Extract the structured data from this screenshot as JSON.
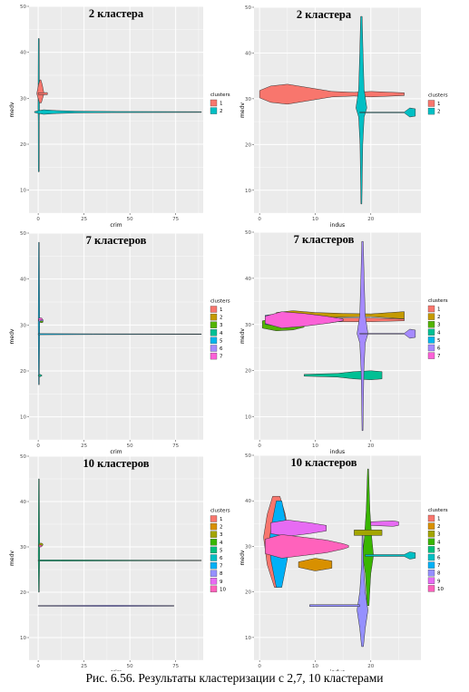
{
  "caption": "Рис. 6.56. Результаты  кластеризации с 2,7, 10 кластерами",
  "chart_data": [
    {
      "type": "violin",
      "title": "2 кластера",
      "xlabel": "crim",
      "ylabel": "medv",
      "xlim": [
        -5,
        90
      ],
      "ylim": [
        5,
        50
      ],
      "xticks": [
        0,
        25,
        50,
        75
      ],
      "yticks": [
        10,
        20,
        30,
        40,
        50
      ],
      "legend_title": "clusters",
      "legend_position": "right",
      "series": [
        {
          "name": "1",
          "color": "#F8766D",
          "x": [
            0,
            5
          ],
          "y": [
            29,
            34
          ],
          "median_y": 31
        },
        {
          "name": "2",
          "color": "#00BFC4",
          "x": [
            0,
            89
          ],
          "y": [
            14,
            43
          ],
          "median_y": 27
        }
      ]
    },
    {
      "type": "violin",
      "title": "2 кластера",
      "xlabel": "indus",
      "ylabel": "medv",
      "xlim": [
        -1,
        29
      ],
      "ylim": [
        5,
        50
      ],
      "xticks": [
        0,
        10,
        20
      ],
      "yticks": [
        10,
        20,
        30,
        40,
        50
      ],
      "legend_title": "clusters",
      "legend_position": "right",
      "series": [
        {
          "name": "1",
          "color": "#F8766D",
          "x": [
            0,
            26
          ],
          "y": [
            28,
            34
          ],
          "median_y": 31
        },
        {
          "name": "2",
          "color": "#00BFC4",
          "x": [
            18,
            28
          ],
          "y": [
            7,
            48
          ],
          "median_y": 27
        }
      ]
    },
    {
      "type": "violin",
      "title": "7 кластеров",
      "xlabel": "crim",
      "ylabel": "medv",
      "xlim": [
        -5,
        90
      ],
      "ylim": [
        5,
        50
      ],
      "xticks": [
        0,
        25,
        50,
        75
      ],
      "yticks": [
        10,
        20,
        30,
        40,
        50
      ],
      "legend_title": "clusters",
      "legend_position": "right",
      "series": [
        {
          "name": "1",
          "color": "#F8766D",
          "x": [
            0,
            3
          ],
          "y": [
            29,
            33
          ],
          "median_y": 31
        },
        {
          "name": "2",
          "color": "#C49A00",
          "x": [
            0,
            3
          ],
          "y": [
            29,
            33
          ],
          "median_y": 31
        },
        {
          "name": "3",
          "color": "#53B400",
          "x": [
            0,
            3
          ],
          "y": [
            29,
            33
          ],
          "median_y": 31
        },
        {
          "name": "4",
          "color": "#00C094",
          "x": [
            0,
            2
          ],
          "y": [
            18,
            20
          ],
          "median_y": 19
        },
        {
          "name": "5",
          "color": "#00B6EB",
          "x": [
            0,
            89
          ],
          "y": [
            17,
            48
          ],
          "median_y": 28
        },
        {
          "name": "6",
          "color": "#A58AFF",
          "x": [
            0,
            3
          ],
          "y": [
            29,
            33
          ],
          "median_y": 31
        },
        {
          "name": "7",
          "color": "#FB61D7",
          "x": [
            0,
            3
          ],
          "y": [
            29,
            33
          ],
          "median_y": 31
        }
      ]
    },
    {
      "type": "violin",
      "title": "7 кластеров",
      "xlabel": "indus",
      "ylabel": "medv",
      "xlim": [
        -1,
        29
      ],
      "ylim": [
        5,
        50
      ],
      "xticks": [
        0,
        10,
        20
      ],
      "yticks": [
        10,
        20,
        30,
        40,
        50
      ],
      "legend_title": "clusters",
      "legend_position": "right",
      "series": [
        {
          "name": "1",
          "color": "#F8766D",
          "x": [
            0,
            26
          ],
          "y": [
            29,
            34
          ],
          "median_y": 31
        },
        {
          "name": "2",
          "color": "#C49A00",
          "x": [
            0,
            26
          ],
          "y": [
            29,
            34
          ],
          "median_y": 32
        },
        {
          "name": "3",
          "color": "#53B400",
          "x": [
            0,
            8
          ],
          "y": [
            28,
            33
          ],
          "median_y": 30
        },
        {
          "name": "4",
          "color": "#00C094",
          "x": [
            8,
            22
          ],
          "y": [
            18,
            20
          ],
          "median_y": 19
        },
        {
          "name": "5",
          "color": "#00B6EB",
          "x": [
            1,
            15
          ],
          "y": [
            28,
            34
          ],
          "median_y": 31
        },
        {
          "name": "6",
          "color": "#A58AFF",
          "x": [
            18,
            28
          ],
          "y": [
            7,
            48
          ],
          "median_y": 28
        },
        {
          "name": "7",
          "color": "#FB61D7",
          "x": [
            1,
            15
          ],
          "y": [
            29,
            34
          ],
          "median_y": 31
        }
      ]
    },
    {
      "type": "violin",
      "title": "10 кластеров",
      "xlabel": "crim",
      "ylabel": "medv",
      "xlim": [
        -5,
        90
      ],
      "ylim": [
        5,
        50
      ],
      "xticks": [
        0,
        25,
        50,
        75
      ],
      "yticks": [
        10,
        20,
        30,
        40,
        50
      ],
      "legend_title": "clusters",
      "legend_position": "right",
      "series": [
        {
          "name": "1",
          "color": "#F8766D",
          "x": [
            0,
            3
          ],
          "y": [
            29,
            32
          ],
          "median_y": 30
        },
        {
          "name": "2",
          "color": "#D89000",
          "x": [
            0,
            3
          ],
          "y": [
            29,
            32
          ],
          "median_y": 30
        },
        {
          "name": "3",
          "color": "#A3A500",
          "x": [
            0,
            3
          ],
          "y": [
            29,
            32
          ],
          "median_y": 30
        },
        {
          "name": "4",
          "color": "#39B600",
          "x": [
            0,
            3
          ],
          "y": [
            29,
            32
          ],
          "median_y": 30
        },
        {
          "name": "5",
          "color": "#00BF7D",
          "x": [
            0,
            89
          ],
          "y": [
            20,
            45
          ],
          "median_y": 27
        },
        {
          "name": "6",
          "color": "#00BFC4",
          "x": [
            0,
            3
          ],
          "y": [
            29,
            32
          ],
          "median_y": 30
        },
        {
          "name": "7",
          "color": "#00B0F6",
          "x": [
            0,
            3
          ],
          "y": [
            29,
            32
          ],
          "median_y": 30
        },
        {
          "name": "8",
          "color": "#9590FF",
          "x": [
            0,
            74
          ],
          "y": [
            16,
            18
          ],
          "median_y": 17
        },
        {
          "name": "9",
          "color": "#E76BF3",
          "x": [
            0,
            3
          ],
          "y": [
            29,
            32
          ],
          "median_y": 30
        },
        {
          "name": "10",
          "color": "#FF62BC",
          "x": [
            0,
            3
          ],
          "y": [
            29,
            32
          ],
          "median_y": 30
        }
      ]
    },
    {
      "type": "violin",
      "title": "10 кластеров",
      "xlabel": "indus",
      "ylabel": "medv",
      "xlim": [
        -1,
        29
      ],
      "ylim": [
        5,
        50
      ],
      "xticks": [
        0,
        10,
        20
      ],
      "yticks": [
        10,
        20,
        30,
        40,
        50
      ],
      "legend_title": "clusters",
      "legend_position": "right",
      "series": [
        {
          "name": "1",
          "color": "#F8766D",
          "x": [
            1,
            5
          ],
          "y": [
            22,
            41
          ],
          "median_y": 32
        },
        {
          "name": "2",
          "color": "#D89000",
          "x": [
            7,
            13
          ],
          "y": [
            23,
            29
          ],
          "median_y": 26
        },
        {
          "name": "3",
          "color": "#A3A500",
          "x": [
            17,
            22
          ],
          "y": [
            29,
            36
          ],
          "median_y": 33
        },
        {
          "name": "4",
          "color": "#39B600",
          "x": [
            17,
            21
          ],
          "y": [
            17,
            47
          ],
          "median_y": 28
        },
        {
          "name": "5",
          "color": "#00BF7D",
          "x": [
            19,
            23
          ],
          "y": [
            27,
            32
          ],
          "median_y": 29
        },
        {
          "name": "6",
          "color": "#00BFC4",
          "x": [
            19,
            28
          ],
          "y": [
            25,
            31
          ],
          "median_y": 28
        },
        {
          "name": "7",
          "color": "#00B0F6",
          "x": [
            0,
            7
          ],
          "y": [
            21,
            40
          ],
          "median_y": 30
        },
        {
          "name": "8",
          "color": "#9590FF",
          "x": [
            9,
            20
          ],
          "y": [
            8,
            33
          ],
          "median_y": 17
        },
        {
          "name": "9",
          "color": "#E76BF3",
          "x": [
            2,
            25
          ],
          "y": [
            30,
            37
          ],
          "median_y": 34
        },
        {
          "name": "10",
          "color": "#FF62BC",
          "x": [
            1,
            16
          ],
          "y": [
            24,
            36
          ],
          "median_y": 30
        }
      ]
    }
  ]
}
